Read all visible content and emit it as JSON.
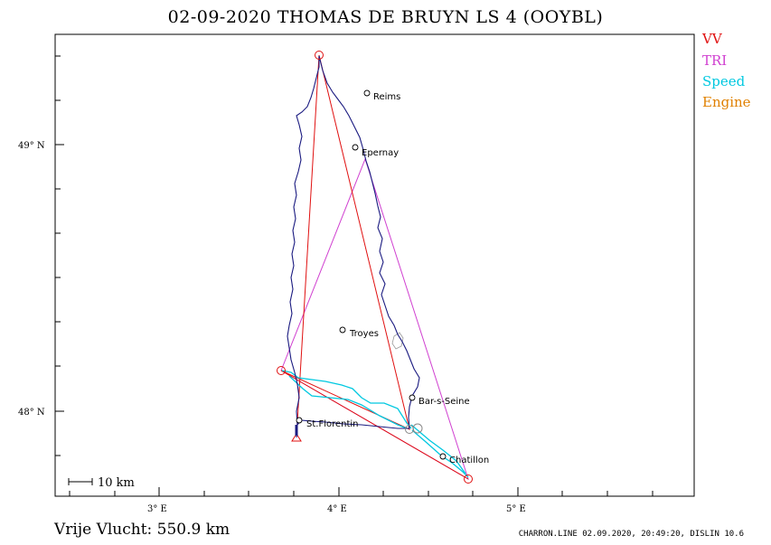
{
  "header": {
    "title": "02-09-2020   THOMAS DE BRUYN   LS 4 (OOYBL)"
  },
  "legend": {
    "items": [
      {
        "label": "VV",
        "color": "#e01010"
      },
      {
        "label": "TRI",
        "color": "#d040d0"
      },
      {
        "label": "Speed",
        "color": "#00c8e0"
      },
      {
        "label": "Engine",
        "color": "#e08000"
      }
    ]
  },
  "axes": {
    "x_ticks": [
      {
        "label": "3° E"
      },
      {
        "label": "4° E"
      },
      {
        "label": "5° E"
      }
    ],
    "y_ticks": [
      {
        "label": "49°  N"
      },
      {
        "label": "48°  N"
      }
    ]
  },
  "scale_bar": {
    "label": "10  km"
  },
  "places": [
    {
      "name": "Reims"
    },
    {
      "name": "Epernay"
    },
    {
      "name": "Troyes"
    },
    {
      "name": "Bar-s-Seine"
    },
    {
      "name": "St.Florentin"
    },
    {
      "name": "Chatillon"
    }
  ],
  "footer": {
    "distance": "Vrije Vlucht:  550.9 km",
    "credits": "CHARRON.LINE 02.09.2020, 20:49:20, DISLIN 10.6"
  },
  "colors": {
    "track": "#1a1a80",
    "speed": "#00c8e0",
    "vv": "#e01010",
    "tri": "#d040d0",
    "frame": "#000000"
  }
}
